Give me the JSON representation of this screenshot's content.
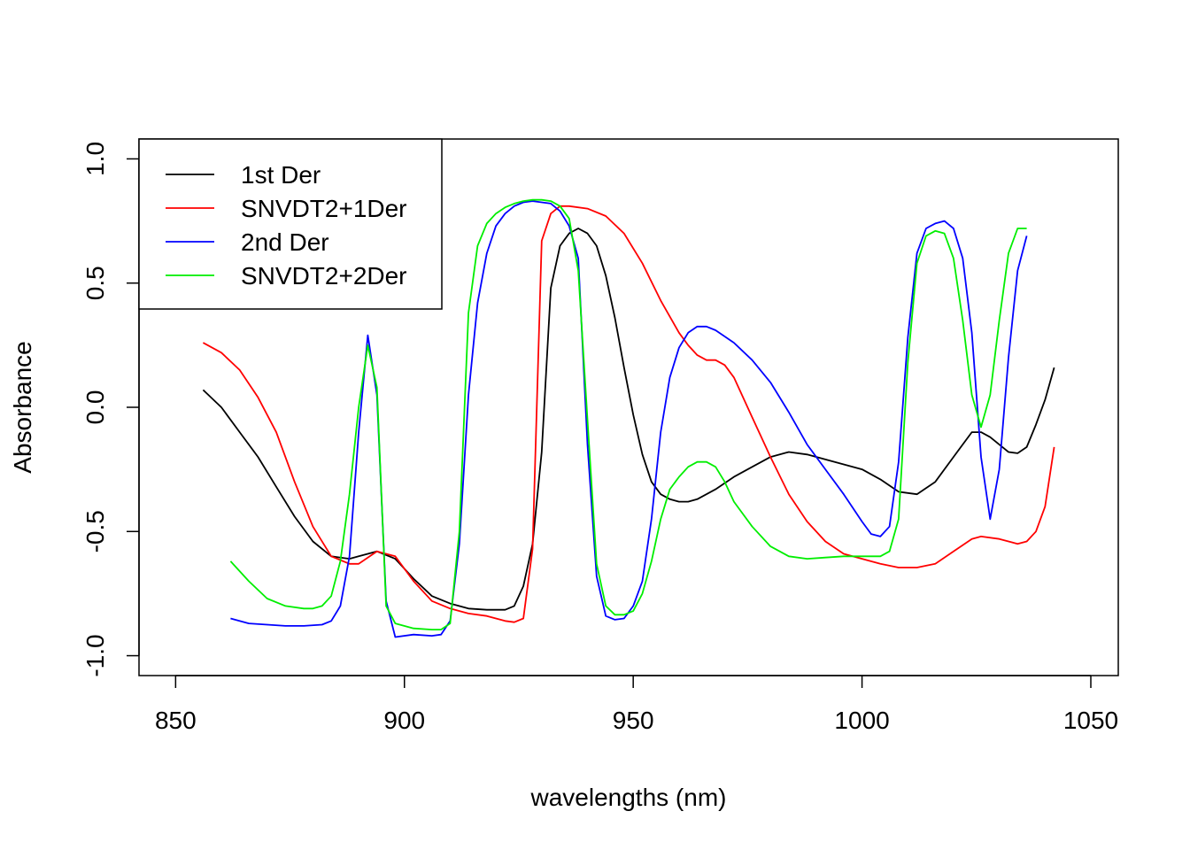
{
  "chart_data": {
    "type": "line",
    "title": "",
    "xlabel": "wavelengths (nm)",
    "ylabel": "Absorbance",
    "xlim": [
      842,
      1056
    ],
    "ylim": [
      -1.08,
      1.08
    ],
    "x_ticks": [
      850,
      900,
      950,
      1000,
      1050
    ],
    "y_ticks": [
      -1.0,
      -0.5,
      0.0,
      0.5,
      1.0
    ],
    "x_tick_labels": [
      "850",
      "900",
      "950",
      "1000",
      "1050"
    ],
    "y_tick_labels": [
      "-1.0",
      "-0.5",
      "0.0",
      "0.5",
      "1.0"
    ],
    "grid": false,
    "legend_position": "top-left",
    "series": [
      {
        "name": "1st Der",
        "color": "#000000",
        "x": [
          856,
          860,
          864,
          868,
          872,
          876,
          880,
          884,
          888,
          890,
          894,
          898,
          902,
          906,
          910,
          914,
          918,
          922,
          924,
          926,
          928,
          930,
          932,
          934,
          936,
          938,
          940,
          942,
          944,
          946,
          948,
          950,
          952,
          954,
          956,
          958,
          960,
          962,
          964,
          968,
          972,
          976,
          980,
          984,
          988,
          992,
          996,
          1000,
          1004,
          1008,
          1012,
          1016,
          1020,
          1024,
          1026,
          1028,
          1032,
          1034,
          1036,
          1038,
          1040,
          1042
        ],
        "y": [
          0.07,
          0.0,
          -0.1,
          -0.2,
          -0.32,
          -0.44,
          -0.54,
          -0.6,
          -0.61,
          -0.6,
          -0.58,
          -0.61,
          -0.69,
          -0.76,
          -0.79,
          -0.81,
          -0.815,
          -0.815,
          -0.8,
          -0.72,
          -0.55,
          -0.18,
          0.48,
          0.65,
          0.7,
          0.72,
          0.7,
          0.65,
          0.53,
          0.36,
          0.16,
          -0.03,
          -0.19,
          -0.3,
          -0.35,
          -0.37,
          -0.38,
          -0.38,
          -0.37,
          -0.33,
          -0.28,
          -0.24,
          -0.2,
          -0.18,
          -0.19,
          -0.21,
          -0.23,
          -0.25,
          -0.29,
          -0.34,
          -0.35,
          -0.3,
          -0.2,
          -0.1,
          -0.1,
          -0.12,
          -0.18,
          -0.185,
          -0.16,
          -0.07,
          0.03,
          0.16
        ]
      },
      {
        "name": "SNVDT2+1Der",
        "color": "#ff0000",
        "x": [
          856,
          860,
          864,
          868,
          872,
          876,
          880,
          884,
          888,
          890,
          894,
          898,
          902,
          906,
          910,
          914,
          918,
          922,
          924,
          926,
          928,
          930,
          932,
          934,
          936,
          940,
          944,
          948,
          952,
          956,
          960,
          962,
          964,
          966,
          968,
          970,
          972,
          976,
          980,
          984,
          988,
          992,
          996,
          1000,
          1004,
          1008,
          1012,
          1016,
          1020,
          1024,
          1026,
          1030,
          1034,
          1036,
          1038,
          1040,
          1042
        ],
        "y": [
          0.26,
          0.22,
          0.15,
          0.04,
          -0.1,
          -0.3,
          -0.48,
          -0.6,
          -0.63,
          -0.63,
          -0.58,
          -0.6,
          -0.7,
          -0.78,
          -0.81,
          -0.83,
          -0.84,
          -0.86,
          -0.865,
          -0.85,
          -0.57,
          0.67,
          0.78,
          0.81,
          0.81,
          0.8,
          0.77,
          0.7,
          0.58,
          0.43,
          0.3,
          0.25,
          0.21,
          0.19,
          0.19,
          0.17,
          0.12,
          -0.04,
          -0.2,
          -0.35,
          -0.46,
          -0.54,
          -0.59,
          -0.61,
          -0.63,
          -0.645,
          -0.645,
          -0.63,
          -0.58,
          -0.53,
          -0.52,
          -0.53,
          -0.55,
          -0.54,
          -0.5,
          -0.4,
          -0.16
        ]
      },
      {
        "name": "2nd Der",
        "color": "#0000ff",
        "x": [
          862,
          866,
          870,
          874,
          878,
          882,
          884,
          886,
          888,
          890,
          892,
          894,
          896,
          898,
          902,
          906,
          908,
          910,
          912,
          914,
          916,
          918,
          920,
          922,
          924,
          926,
          928,
          930,
          932,
          934,
          936,
          938,
          940,
          942,
          944,
          946,
          948,
          950,
          952,
          954,
          956,
          958,
          960,
          962,
          964,
          966,
          968,
          972,
          976,
          980,
          984,
          988,
          992,
          996,
          1000,
          1002,
          1004,
          1006,
          1008,
          1010,
          1012,
          1014,
          1016,
          1018,
          1020,
          1022,
          1024,
          1026,
          1028,
          1030,
          1032,
          1034,
          1036
        ],
        "y": [
          -0.85,
          -0.87,
          -0.875,
          -0.88,
          -0.88,
          -0.875,
          -0.86,
          -0.8,
          -0.6,
          -0.1,
          0.29,
          0.05,
          -0.78,
          -0.925,
          -0.915,
          -0.92,
          -0.915,
          -0.86,
          -0.55,
          0.05,
          0.42,
          0.62,
          0.73,
          0.78,
          0.81,
          0.825,
          0.83,
          0.825,
          0.82,
          0.79,
          0.73,
          0.6,
          -0.15,
          -0.68,
          -0.84,
          -0.855,
          -0.85,
          -0.8,
          -0.7,
          -0.45,
          -0.1,
          0.12,
          0.24,
          0.3,
          0.325,
          0.325,
          0.31,
          0.26,
          0.19,
          0.1,
          -0.02,
          -0.15,
          -0.25,
          -0.35,
          -0.46,
          -0.51,
          -0.52,
          -0.48,
          -0.22,
          0.28,
          0.62,
          0.72,
          0.74,
          0.75,
          0.72,
          0.6,
          0.3,
          -0.2,
          -0.45,
          -0.25,
          0.2,
          0.55,
          0.69
        ]
      },
      {
        "name": "SNVDT2+2Der",
        "color": "#00ee00",
        "x": [
          862,
          866,
          870,
          874,
          878,
          880,
          882,
          884,
          886,
          888,
          890,
          892,
          894,
          896,
          898,
          902,
          906,
          908,
          910,
          912,
          914,
          916,
          918,
          920,
          922,
          924,
          926,
          928,
          930,
          932,
          934,
          936,
          938,
          940,
          942,
          944,
          946,
          948,
          950,
          952,
          954,
          956,
          958,
          960,
          962,
          964,
          966,
          968,
          970,
          972,
          976,
          980,
          984,
          988,
          992,
          996,
          1000,
          1004,
          1006,
          1008,
          1010,
          1012,
          1014,
          1016,
          1018,
          1020,
          1022,
          1024,
          1026,
          1028,
          1030,
          1032,
          1034,
          1036
        ],
        "y": [
          -0.62,
          -0.7,
          -0.77,
          -0.8,
          -0.81,
          -0.81,
          -0.8,
          -0.76,
          -0.62,
          -0.35,
          0.0,
          0.25,
          0.08,
          -0.8,
          -0.87,
          -0.89,
          -0.895,
          -0.895,
          -0.87,
          -0.5,
          0.38,
          0.65,
          0.74,
          0.78,
          0.805,
          0.82,
          0.83,
          0.835,
          0.835,
          0.83,
          0.81,
          0.76,
          0.55,
          -0.05,
          -0.63,
          -0.8,
          -0.835,
          -0.835,
          -0.82,
          -0.75,
          -0.62,
          -0.45,
          -0.33,
          -0.28,
          -0.24,
          -0.22,
          -0.22,
          -0.24,
          -0.3,
          -0.38,
          -0.48,
          -0.56,
          -0.6,
          -0.61,
          -0.605,
          -0.6,
          -0.6,
          -0.6,
          -0.58,
          -0.45,
          0.18,
          0.58,
          0.69,
          0.71,
          0.7,
          0.6,
          0.35,
          0.05,
          -0.08,
          0.05,
          0.35,
          0.62,
          0.72,
          0.72
        ]
      }
    ]
  }
}
